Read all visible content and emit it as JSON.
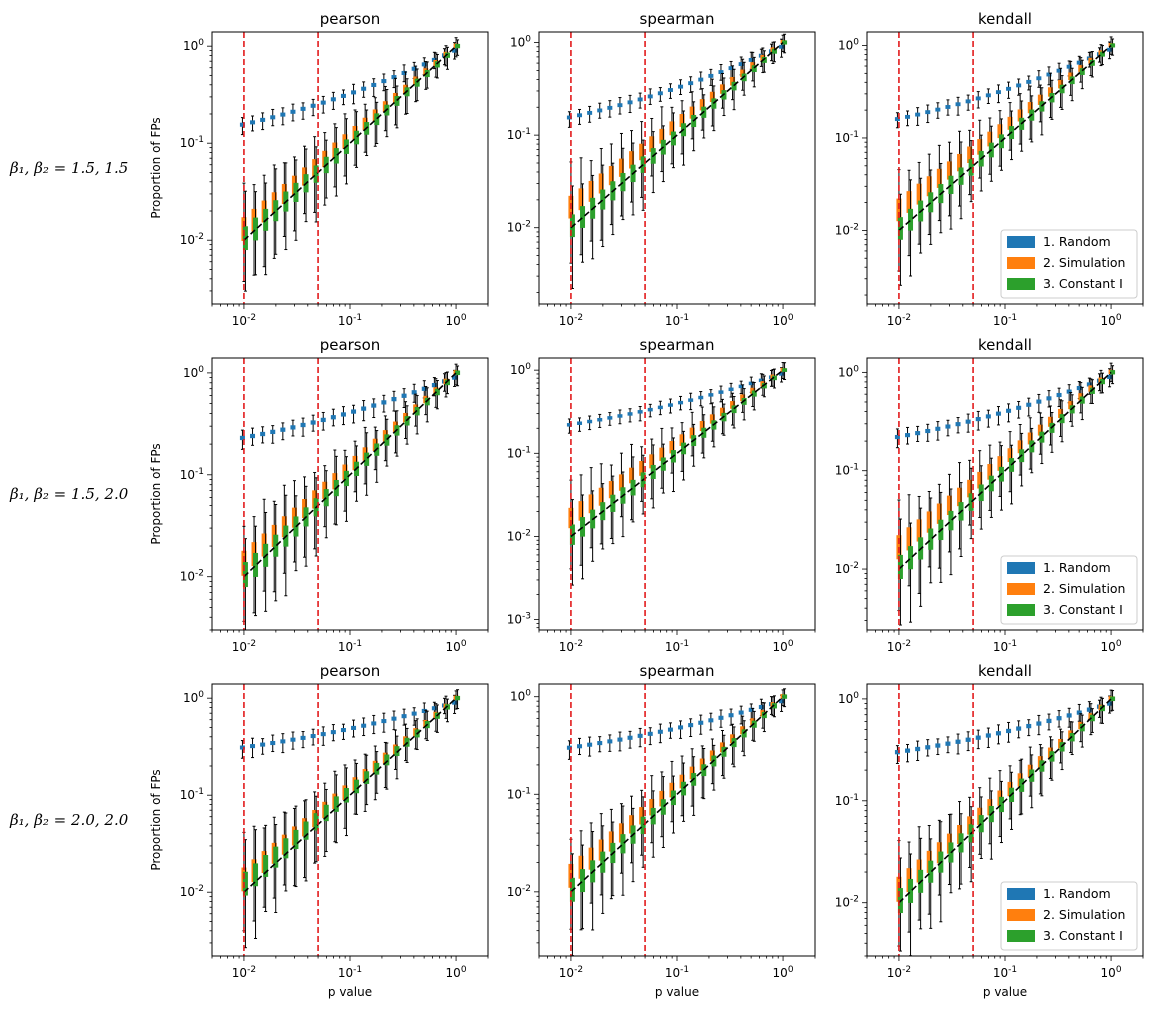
{
  "figure": {
    "xlabel": "p value",
    "ylabel": "Proportion of FPs",
    "row_labels": [
      "β₁, β₂ = 1.5, 1.5",
      "β₁, β₂ = 1.5, 2.0",
      "β₁, β₂ = 2.0, 2.0"
    ],
    "column_titles": [
      "pearson",
      "spearman",
      "kendall"
    ],
    "reference_lines_x": [
      0.01,
      0.05
    ],
    "reference_line_color": "#e31a1c",
    "diagonal_color": "#000000",
    "legend": [
      {
        "label": "1. Random",
        "color": "#1f77b4"
      },
      {
        "label": "2. Simulation",
        "color": "#ff7f0e"
      },
      {
        "label": "3. Constant I",
        "color": "#2ca02c"
      }
    ]
  },
  "chart_data": [
    {
      "type": "box",
      "row": 0,
      "col": 0,
      "title": "pearson",
      "xlabel": "",
      "ylabel": "Proportion of FPs",
      "xscale": "log",
      "yscale": "log",
      "xlim": [
        0.005,
        2
      ],
      "ylim": [
        0.0022,
        1.4
      ],
      "x_ticks": [
        "10^-2",
        "10^-1",
        "10^0"
      ],
      "y_ticks": [
        "10^-2",
        "10^-1",
        "10^0"
      ],
      "legend": false,
      "series": [
        {
          "name": "1. Random",
          "y_at_p001": 0.155
        },
        {
          "name": "2. Simulation",
          "y_at_p001": 0.0125
        },
        {
          "name": "3. Constant I",
          "y_at_p001": 0.012
        }
      ]
    },
    {
      "type": "box",
      "row": 0,
      "col": 1,
      "title": "spearman",
      "xlabel": "",
      "ylabel": "",
      "xscale": "log",
      "yscale": "log",
      "xlim": [
        0.005,
        2
      ],
      "ylim": [
        0.0015,
        1.3
      ],
      "x_ticks": [
        "10^-2",
        "10^-1",
        "10^0"
      ],
      "y_ticks": [
        "10^-2",
        "10^-1",
        "10^0"
      ],
      "legend": false,
      "series": [
        {
          "name": "1. Random",
          "y_at_p001": 0.155
        },
        {
          "name": "2. Simulation",
          "y_at_p001": 0.016
        },
        {
          "name": "3. Constant I",
          "y_at_p001": 0.012
        }
      ]
    },
    {
      "type": "box",
      "row": 0,
      "col": 2,
      "title": "kendall",
      "xlabel": "",
      "ylabel": "",
      "xscale": "log",
      "yscale": "log",
      "xlim": [
        0.005,
        2
      ],
      "ylim": [
        0.0016,
        1.4
      ],
      "x_ticks": [
        "10^-2",
        "10^-1",
        "10^0"
      ],
      "y_ticks": [
        "10^-2",
        "10^-1",
        "10^0"
      ],
      "legend": true,
      "legend_loc": "lower right",
      "series": [
        {
          "name": "1. Random",
          "y_at_p001": 0.16
        },
        {
          "name": "2. Simulation",
          "y_at_p001": 0.016
        },
        {
          "name": "3. Constant I",
          "y_at_p001": 0.012
        }
      ]
    },
    {
      "type": "box",
      "row": 1,
      "col": 0,
      "title": "pearson",
      "xlabel": "",
      "ylabel": "Proportion of FPs",
      "xscale": "log",
      "yscale": "log",
      "xlim": [
        0.005,
        2
      ],
      "ylim": [
        0.003,
        1.4
      ],
      "x_ticks": [
        "10^-2",
        "10^-1",
        "10^0"
      ],
      "y_ticks": [
        "10^-2",
        "10^-1",
        "10^0"
      ],
      "legend": false,
      "series": [
        {
          "name": "1. Random",
          "y_at_p001": 0.23
        },
        {
          "name": "2. Simulation",
          "y_at_p001": 0.013
        },
        {
          "name": "3. Constant I",
          "y_at_p001": 0.012
        }
      ]
    },
    {
      "type": "box",
      "row": 1,
      "col": 1,
      "title": "spearman",
      "xlabel": "",
      "ylabel": "",
      "xscale": "log",
      "yscale": "log",
      "xlim": [
        0.005,
        2
      ],
      "ylim": [
        0.00075,
        1.4
      ],
      "x_ticks": [
        "10^-2",
        "10^-1",
        "10^0"
      ],
      "y_ticks": [
        "10^-3",
        "10^-2",
        "10^-1",
        "10^0"
      ],
      "legend": false,
      "series": [
        {
          "name": "1. Random",
          "y_at_p001": 0.22
        },
        {
          "name": "2. Simulation",
          "y_at_p001": 0.016
        },
        {
          "name": "3. Constant I",
          "y_at_p001": 0.012
        }
      ]
    },
    {
      "type": "box",
      "row": 1,
      "col": 2,
      "title": "kendall",
      "xlabel": "",
      "ylabel": "",
      "xscale": "log",
      "yscale": "log",
      "xlim": [
        0.005,
        2
      ],
      "ylim": [
        0.0024,
        1.4
      ],
      "x_ticks": [
        "10^-2",
        "10^-1",
        "10^0"
      ],
      "y_ticks": [
        "10^-2",
        "10^-1",
        "10^0"
      ],
      "legend": true,
      "legend_loc": "lower right",
      "series": [
        {
          "name": "1. Random",
          "y_at_p001": 0.22
        },
        {
          "name": "2. Simulation",
          "y_at_p001": 0.016
        },
        {
          "name": "3. Constant I",
          "y_at_p001": 0.012
        }
      ]
    },
    {
      "type": "box",
      "row": 2,
      "col": 0,
      "title": "pearson",
      "xlabel": "p value",
      "ylabel": "Proportion of FPs",
      "xscale": "log",
      "yscale": "log",
      "xlim": [
        0.005,
        2
      ],
      "ylim": [
        0.0022,
        1.4
      ],
      "x_ticks": [
        "10^-2",
        "10^-1",
        "10^0"
      ],
      "y_ticks": [
        "10^-2",
        "10^-1",
        "10^0"
      ],
      "legend": false,
      "series": [
        {
          "name": "1. Random",
          "y_at_p001": 0.31
        },
        {
          "name": "2. Simulation",
          "y_at_p001": 0.013
        },
        {
          "name": "3. Constant I",
          "y_at_p001": 0.014
        }
      ]
    },
    {
      "type": "box",
      "row": 2,
      "col": 1,
      "title": "spearman",
      "xlabel": "p value",
      "ylabel": "",
      "xscale": "log",
      "yscale": "log",
      "xlim": [
        0.005,
        2
      ],
      "ylim": [
        0.0022,
        1.35
      ],
      "x_ticks": [
        "10^-2",
        "10^-1",
        "10^0"
      ],
      "y_ticks": [
        "10^-2",
        "10^-1",
        "10^0"
      ],
      "legend": false,
      "series": [
        {
          "name": "1. Random",
          "y_at_p001": 0.3
        },
        {
          "name": "2. Simulation",
          "y_at_p001": 0.014
        },
        {
          "name": "3. Constant I",
          "y_at_p001": 0.012
        }
      ]
    },
    {
      "type": "box",
      "row": 2,
      "col": 2,
      "title": "kendall",
      "xlabel": "p value",
      "ylabel": "",
      "xscale": "log",
      "yscale": "log",
      "xlim": [
        0.005,
        2
      ],
      "ylim": [
        0.003,
        1.4
      ],
      "x_ticks": [
        "10^-2",
        "10^-1",
        "10^0"
      ],
      "y_ticks": [
        "10^-2",
        "10^-1",
        "10^0"
      ],
      "legend": true,
      "legend_loc": "lower right",
      "series": [
        {
          "name": "1. Random",
          "y_at_p001": 0.3
        },
        {
          "name": "2. Simulation",
          "y_at_p001": 0.013
        },
        {
          "name": "3. Constant I",
          "y_at_p001": 0.012
        }
      ]
    }
  ]
}
